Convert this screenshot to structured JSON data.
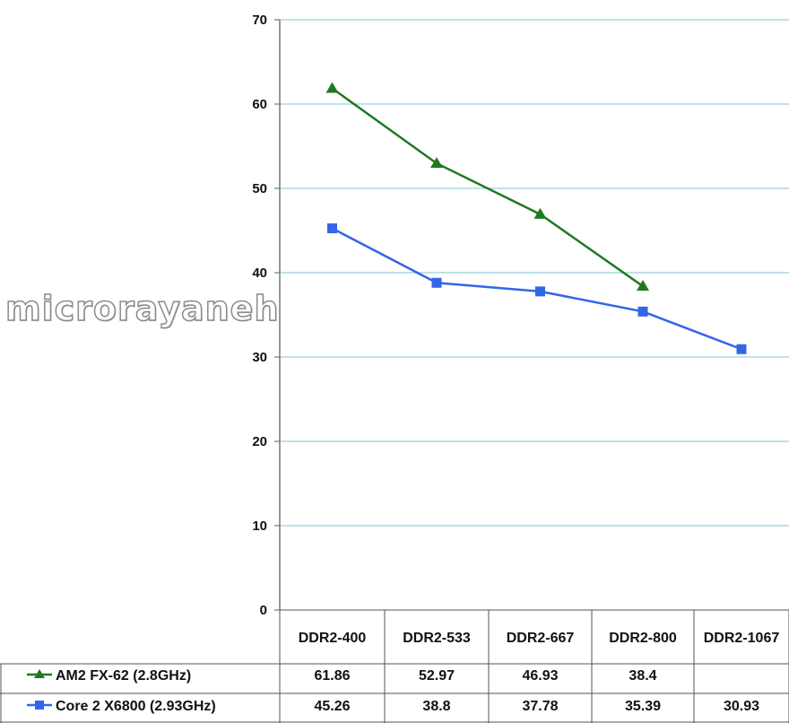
{
  "watermark": "microrayaneh",
  "chart_data": {
    "type": "line",
    "title": "",
    "xlabel": "",
    "ylabel": "",
    "ylim": [
      0,
      70
    ],
    "yticks": [
      0,
      10,
      20,
      30,
      40,
      50,
      60,
      70
    ],
    "grid": true,
    "legend": "table-below",
    "categories": [
      "DDR2-400",
      "DDR2-533",
      "DDR2-667",
      "DDR2-800",
      "DDR2-1067"
    ],
    "series": [
      {
        "name": "AM2 FX-62 (2.8GHz)",
        "values": [
          61.86,
          52.97,
          46.93,
          38.4,
          null
        ],
        "color": "#1f7a1f",
        "marker": "triangle"
      },
      {
        "name": "Core 2 X6800 (2.93GHz)",
        "values": [
          45.26,
          38.8,
          37.78,
          35.39,
          30.93
        ],
        "color": "#3366e6",
        "marker": "square"
      }
    ],
    "table_values": [
      [
        "61.86",
        "52.97",
        "46.93",
        "38.4",
        ""
      ],
      [
        "45.26",
        "38.8",
        "37.78",
        "35.39",
        "30.93"
      ]
    ]
  }
}
